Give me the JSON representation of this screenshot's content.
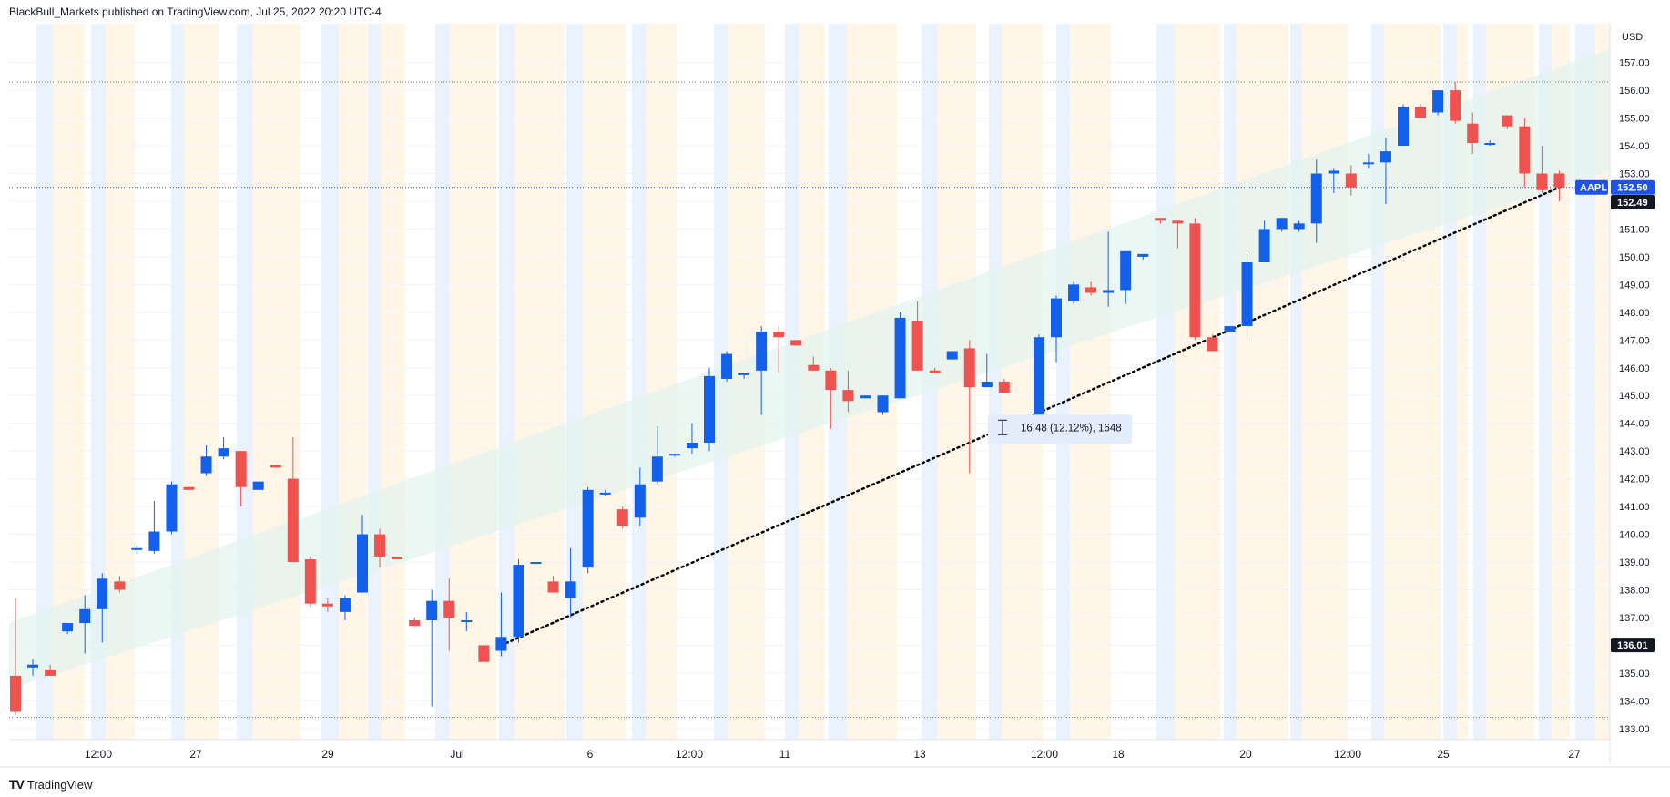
{
  "header": {
    "published_by": "BlackBull_Markets published on TradingView.com, Jul 25, 2022 20:20 UTC-4"
  },
  "footer": {
    "logo_text": "TradingView",
    "logo_icon": "tradingview-logo-icon"
  },
  "colors": {
    "up": "#1360ea",
    "down": "#ef5350",
    "session_orange": "#fff3e0",
    "session_blue": "#e3edfc",
    "channel_fill": "#e2f3ee",
    "tag_blue": "#1e53e5",
    "tag_dark": "#131722",
    "dotted_line": "#000000"
  },
  "chart_data": {
    "type": "candlestick",
    "symbol": "AAPL",
    "currency": "USD",
    "ylim": [
      132.6,
      158.4
    ],
    "y_ticks": [
      "157.00",
      "156.00",
      "155.00",
      "154.00",
      "153.00",
      "152.00",
      "151.00",
      "150.00",
      "149.00",
      "148.00",
      "147.00",
      "146.00",
      "145.00",
      "144.00",
      "143.00",
      "142.00",
      "141.00",
      "140.00",
      "139.00",
      "138.00",
      "137.00",
      "136.00",
      "135.00",
      "134.00",
      "133.00"
    ],
    "x_ticks": [
      "12:00",
      "27",
      "29",
      "Jul",
      "6",
      "12:00",
      "11",
      "13",
      "12:00",
      "18",
      "20",
      "12:00",
      "25",
      "27"
    ],
    "last_price_label": "152.50",
    "last_price": 152.5,
    "prev_close_label": "152.49",
    "prev_close": 152.49,
    "start_price_label": "136.01",
    "start_price": 136.01,
    "upper_ref_line": 156.3,
    "lower_ref_line": 133.4,
    "measure_label": "16.48 (12.12%), 1648",
    "candles": [
      [
        134.9,
        137.7,
        133.5,
        133.6
      ],
      [
        135.2,
        135.5,
        134.9,
        135.3
      ],
      [
        135.1,
        135.3,
        134.9,
        134.9
      ],
      [
        136.5,
        136.8,
        136.4,
        136.8
      ],
      [
        136.8,
        137.8,
        135.7,
        137.3
      ],
      [
        137.3,
        138.6,
        136.1,
        138.4
      ],
      [
        138.3,
        138.5,
        137.9,
        138.0
      ],
      [
        139.5,
        139.6,
        139.3,
        139.5
      ],
      [
        139.4,
        141.2,
        139.3,
        140.1
      ],
      [
        140.1,
        141.9,
        140.0,
        141.8
      ],
      [
        141.7,
        141.7,
        141.6,
        141.6
      ],
      [
        142.2,
        143.2,
        142.1,
        142.8
      ],
      [
        142.8,
        143.5,
        142.7,
        143.1
      ],
      [
        143.0,
        143.0,
        141.0,
        141.7
      ],
      [
        141.6,
        141.9,
        141.7,
        141.9
      ],
      [
        142.5,
        142.5,
        142.4,
        142.4
      ],
      [
        142.0,
        143.5,
        139.0,
        139.0
      ],
      [
        139.1,
        139.2,
        137.4,
        137.5
      ],
      [
        137.5,
        137.7,
        137.2,
        137.4
      ],
      [
        137.2,
        137.8,
        136.9,
        137.7
      ],
      [
        137.9,
        140.7,
        137.9,
        140.0
      ],
      [
        140.0,
        140.2,
        138.8,
        139.2
      ],
      [
        139.2,
        139.2,
        139.1,
        139.1
      ],
      [
        136.9,
        137.0,
        136.7,
        136.7
      ],
      [
        136.9,
        138.0,
        133.8,
        137.6
      ],
      [
        137.6,
        138.4,
        135.8,
        137.0
      ],
      [
        136.9,
        137.2,
        136.5,
        136.9
      ],
      [
        136.0,
        136.1,
        135.4,
        135.4
      ],
      [
        135.8,
        137.9,
        135.6,
        136.3
      ],
      [
        136.3,
        139.1,
        136.1,
        138.9
      ],
      [
        139.0,
        139.0,
        139.0,
        139.0
      ],
      [
        138.3,
        138.5,
        137.9,
        137.9
      ],
      [
        137.7,
        139.5,
        137.0,
        138.3
      ],
      [
        138.8,
        141.7,
        138.6,
        141.6
      ],
      [
        141.5,
        141.6,
        141.4,
        141.5
      ],
      [
        140.9,
        141.0,
        140.2,
        140.3
      ],
      [
        140.6,
        142.4,
        140.3,
        141.8
      ],
      [
        141.9,
        143.9,
        141.8,
        142.8
      ],
      [
        142.9,
        142.9,
        142.8,
        142.9
      ],
      [
        143.1,
        144.0,
        142.9,
        143.3
      ],
      [
        143.3,
        146.0,
        143.0,
        145.7
      ],
      [
        145.6,
        146.6,
        145.5,
        146.5
      ],
      [
        145.8,
        145.8,
        145.6,
        145.8
      ],
      [
        145.9,
        147.5,
        144.3,
        147.3
      ],
      [
        147.3,
        147.5,
        145.8,
        147.1
      ],
      [
        147.0,
        147.0,
        146.8,
        146.8
      ],
      [
        146.1,
        146.4,
        145.9,
        145.9
      ],
      [
        145.9,
        146.0,
        143.8,
        145.2
      ],
      [
        145.2,
        145.9,
        144.4,
        144.8
      ],
      [
        144.9,
        145.0,
        144.9,
        145.0
      ],
      [
        144.4,
        145.0,
        144.3,
        145.0
      ],
      [
        144.9,
        148.0,
        144.9,
        147.8
      ],
      [
        147.7,
        148.4,
        145.9,
        145.9
      ],
      [
        145.9,
        146.0,
        145.8,
        145.8
      ],
      [
        146.3,
        146.6,
        146.3,
        146.6
      ],
      [
        146.7,
        147.0,
        142.2,
        145.3
      ],
      [
        145.3,
        146.5,
        145.3,
        145.5
      ],
      [
        145.5,
        145.6,
        145.1,
        145.1
      ],
      [
        144.2,
        144.3,
        144.1,
        144.1
      ],
      [
        144.0,
        147.2,
        144.0,
        147.1
      ],
      [
        147.1,
        148.6,
        146.2,
        148.5
      ],
      [
        148.4,
        149.1,
        148.3,
        149.0
      ],
      [
        148.9,
        149.1,
        148.6,
        148.7
      ],
      [
        148.7,
        150.9,
        148.2,
        148.8
      ],
      [
        148.8,
        150.2,
        148.3,
        150.2
      ],
      [
        150.0,
        150.1,
        149.9,
        150.1
      ],
      [
        151.4,
        151.4,
        151.2,
        151.3
      ],
      [
        151.3,
        151.3,
        150.3,
        151.2
      ],
      [
        151.2,
        151.4,
        147.0,
        147.1
      ],
      [
        147.1,
        147.2,
        146.6,
        146.6
      ],
      [
        147.3,
        147.5,
        147.3,
        147.5
      ],
      [
        147.5,
        150.1,
        147.0,
        149.8
      ],
      [
        149.8,
        151.3,
        149.8,
        151.0
      ],
      [
        151.0,
        151.4,
        150.9,
        151.4
      ],
      [
        151.0,
        151.3,
        150.9,
        151.2
      ],
      [
        151.2,
        153.5,
        150.5,
        153.0
      ],
      [
        153.0,
        153.2,
        152.3,
        153.1
      ],
      [
        153.0,
        153.3,
        152.2,
        152.5
      ],
      [
        153.4,
        153.7,
        153.2,
        153.4
      ],
      [
        153.4,
        154.3,
        151.9,
        153.8
      ],
      [
        154.0,
        155.5,
        154.0,
        155.4
      ],
      [
        155.4,
        155.5,
        155.0,
        155.0
      ],
      [
        155.2,
        156.0,
        155.1,
        156.0
      ],
      [
        156.0,
        156.3,
        154.8,
        154.9
      ],
      [
        154.8,
        155.2,
        153.7,
        154.1
      ],
      [
        154.1,
        154.2,
        154.0,
        154.1
      ],
      [
        155.1,
        155.1,
        154.6,
        154.7
      ],
      [
        154.7,
        155.0,
        152.5,
        153.0
      ],
      [
        153.0,
        154.0,
        152.3,
        152.4
      ],
      [
        153.0,
        153.1,
        152.0,
        152.5
      ]
    ],
    "channel": {
      "lower": [
        [
          0,
          134.5
        ],
        [
          89,
          152.5
        ]
      ],
      "upper": [
        [
          0,
          136.9
        ],
        [
          96,
          158.4
        ]
      ]
    },
    "dotted_trend": [
      [
        28,
        136.0
      ],
      [
        89,
        152.5
      ]
    ]
  }
}
